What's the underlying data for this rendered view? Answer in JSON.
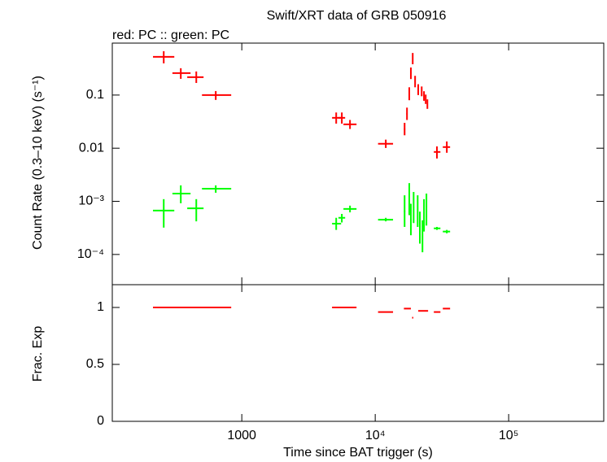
{
  "chart_data": [
    {
      "type": "errorbar",
      "title": "Swift/XRT data of GRB 050916",
      "subtitle": "red: PC  :: green: PC",
      "y_label": "Count Rate (0.3–10 keV) (s⁻¹)",
      "xscale": "log",
      "yscale": "log",
      "xlim": [
        107,
        516000
      ],
      "ylim": [
        2.7e-05,
        0.95
      ],
      "yticks": [
        0.1,
        0.01,
        {
          "value": 0.001,
          "label": "10⁻³"
        },
        {
          "value": 0.0001,
          "label": "10⁻⁴"
        }
      ],
      "series": [
        {
          "color": "#ff0000",
          "x": [
            260,
            349,
            456,
            638,
            5100,
            5620,
            6470,
            12000,
            16600,
            17300,
            18000,
            18500,
            19100,
            19900,
            21000,
            22300,
            23200,
            23900,
            24600,
            29000,
            34400
          ],
          "x_low": [
            216,
            302,
            390,
            503,
            4750,
            5300,
            5780,
            10500,
            16400,
            17100,
            17800,
            18300,
            18900,
            19700,
            20800,
            22100,
            23000,
            23700,
            24400,
            27500,
            32100
          ],
          "x_high": [
            312,
            413,
            517,
            833,
            5550,
            5950,
            7240,
            13600,
            16800,
            17500,
            18200,
            18700,
            19300,
            20100,
            21200,
            22500,
            23400,
            24100,
            24800,
            30800,
            36400
          ],
          "values": [
            0.525,
            0.259,
            0.217,
            0.1,
            0.0373,
            0.0373,
            0.0281,
            0.0121,
            0.0228,
            0.0444,
            0.107,
            0.259,
            0.489,
            0.182,
            0.128,
            0.119,
            0.0966,
            0.0838,
            0.0679,
            0.0085,
            0.0105
          ],
          "y_low": [
            0.395,
            0.202,
            0.169,
            0.081,
            0.029,
            0.029,
            0.023,
            0.0101,
            0.0175,
            0.034,
            0.08,
            0.2,
            0.38,
            0.14,
            0.1,
            0.095,
            0.078,
            0.068,
            0.055,
            0.0064,
            0.0082
          ],
          "y_high": [
            0.67,
            0.32,
            0.278,
            0.119,
            0.047,
            0.047,
            0.034,
            0.0145,
            0.03,
            0.058,
            0.14,
            0.33,
            0.62,
            0.23,
            0.16,
            0.145,
            0.118,
            0.102,
            0.083,
            0.0108,
            0.0134
          ]
        },
        {
          "color": "#00ff00",
          "x": [
            260,
            349,
            456,
            638,
            5100,
            5620,
            6470,
            12000,
            16600,
            18000,
            18500,
            19400,
            20800,
            21600,
            22600,
            23200,
            24200,
            29000,
            34400
          ],
          "x_low": [
            216,
            302,
            390,
            503,
            4750,
            5300,
            5780,
            10500,
            16400,
            17800,
            18300,
            19200,
            20600,
            21400,
            22400,
            23000,
            24000,
            27500,
            32100
          ],
          "x_high": [
            312,
            413,
            517,
            833,
            5550,
            5950,
            7240,
            13600,
            16800,
            18200,
            18700,
            19600,
            21000,
            21800,
            22800,
            23400,
            24400,
            30800,
            36400
          ],
          "values": [
            0.00067,
            0.0014,
            0.00074,
            0.00173,
            0.00038,
            0.00049,
            0.00072,
            0.00045,
            0.00065,
            0.0011,
            0.00045,
            0.00077,
            0.00065,
            0.00032,
            0.00022,
            0.00054,
            0.00069,
            0.00031,
            0.00027
          ],
          "y_low": [
            0.00032,
            0.00092,
            0.00042,
            0.00145,
            0.00029,
            0.0004,
            0.00062,
            0.00042,
            0.00033,
            0.00055,
            0.00023,
            0.00039,
            0.00033,
            0.00016,
            0.00011,
            0.00027,
            0.00035,
            0.00029,
            0.00025
          ],
          "y_high": [
            0.0011,
            0.002,
            0.0011,
            0.002,
            0.00049,
            0.00058,
            0.00083,
            0.00049,
            0.0013,
            0.0022,
            0.0009,
            0.0015,
            0.0013,
            0.00064,
            0.00044,
            0.0011,
            0.0014,
            0.00033,
            0.00029
          ]
        }
      ]
    },
    {
      "type": "segment",
      "y_label": "Frac. Exp",
      "x_label": "Time since BAT trigger (s)",
      "xscale": "log",
      "yscale": "linear",
      "xlim": [
        107,
        516000
      ],
      "ylim": [
        0,
        1.2
      ],
      "xticks": [
        1000,
        {
          "value": 10000,
          "label": "10⁴"
        },
        {
          "value": 100000,
          "label": "10⁵"
        }
      ],
      "yticks": [
        0,
        0.5,
        1
      ],
      "series": [
        {
          "color": "#ff0000",
          "x_low": [
            216,
            302,
            390,
            503,
            4750,
            5300,
            5780,
            10500,
            16400,
            18900,
            21000,
            27500,
            32100
          ],
          "x_high": [
            312,
            413,
            517,
            833,
            5550,
            5950,
            7240,
            13600,
            18500,
            19300,
            24900,
            30800,
            36400
          ],
          "values": [
            1,
            1,
            1,
            1,
            1,
            1,
            1,
            0.96,
            0.99,
            0.91,
            0.97,
            0.96,
            0.99
          ]
        }
      ]
    }
  ]
}
